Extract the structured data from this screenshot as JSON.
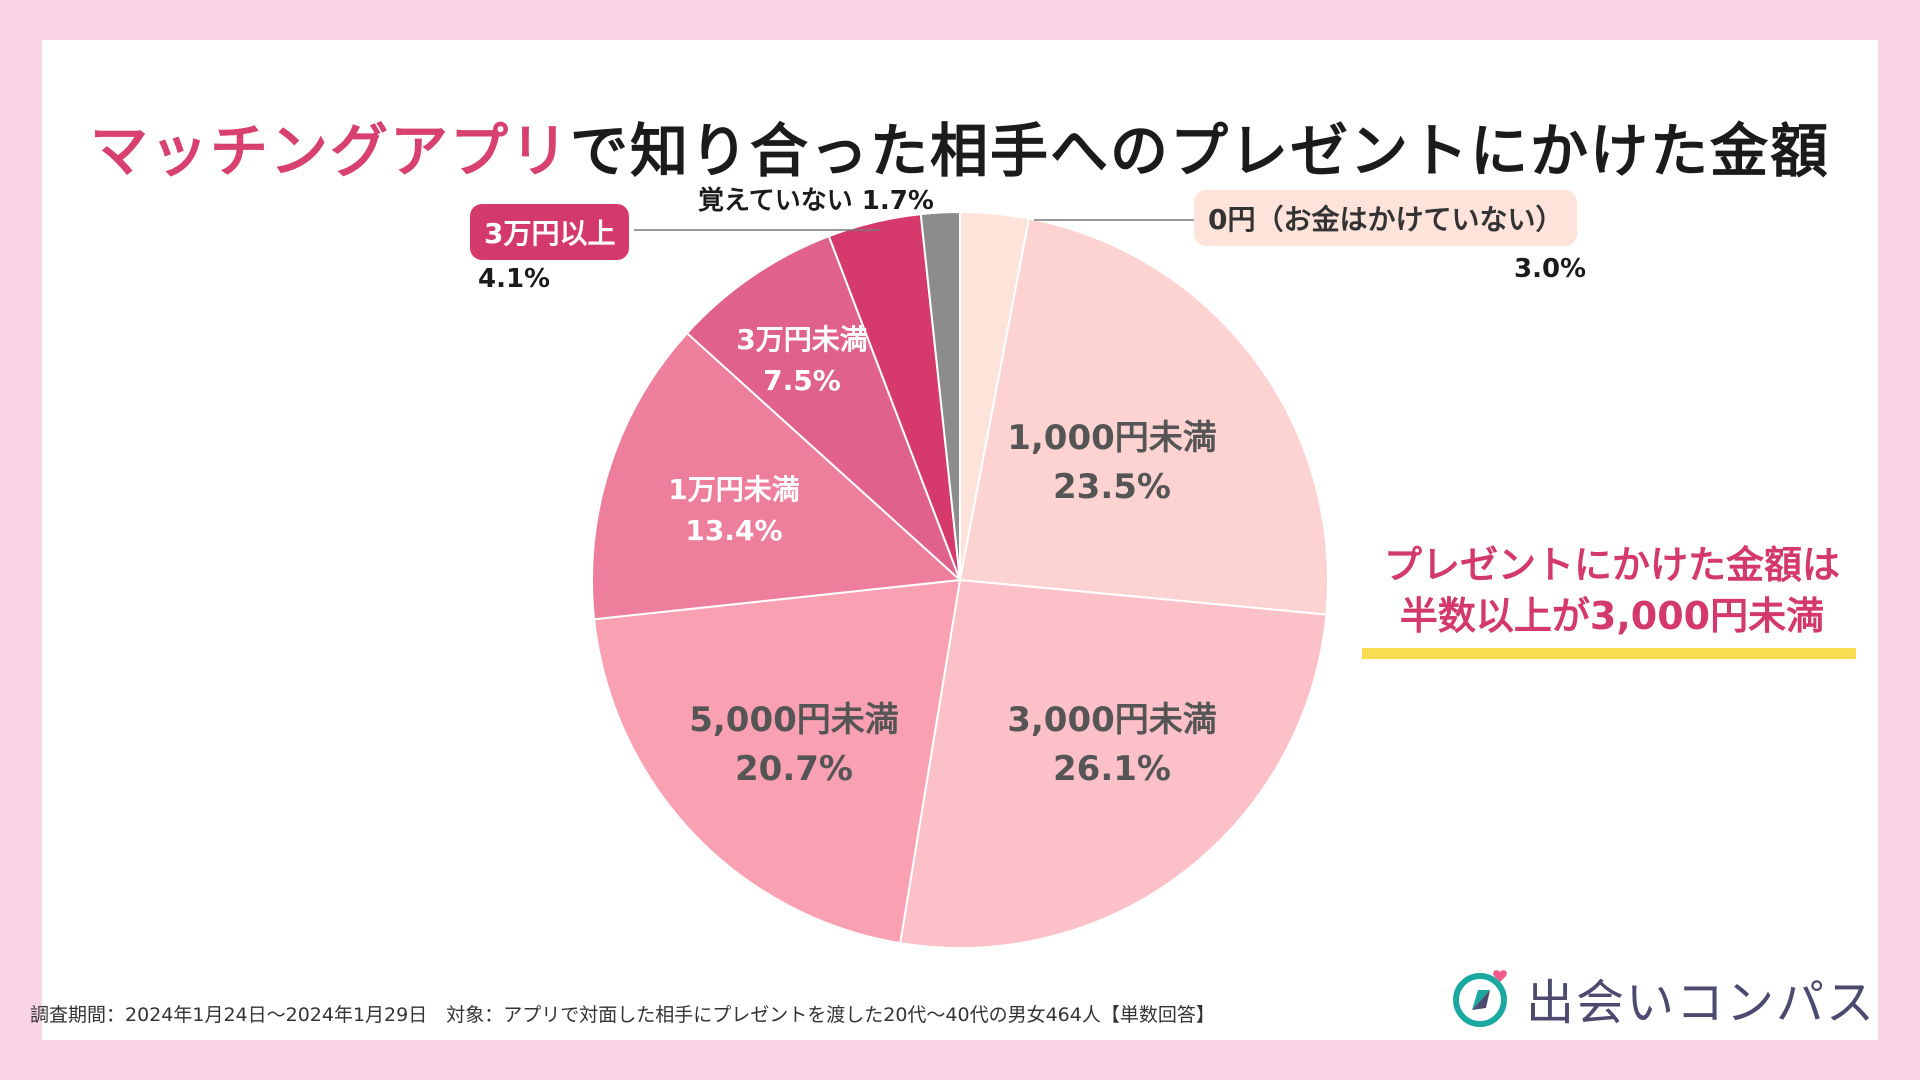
{
  "title": {
    "highlight": "マッチングアプリ",
    "rest": "で知り合った相手へのプレゼントにかけた金額"
  },
  "chart_data": {
    "type": "pie",
    "title": "マッチングアプリで知り合った相手へのプレゼントにかけた金額",
    "slices": [
      {
        "label": "0円（お金はかけていない）",
        "value": 3.0,
        "value_label": "3.0%",
        "color": "#fde3da"
      },
      {
        "label": "1,000円未満",
        "value": 23.5,
        "value_label": "23.5%",
        "color": "#fcd3d0"
      },
      {
        "label": "3,000円未満",
        "value": 26.1,
        "value_label": "26.1%",
        "color": "#fcc1c8"
      },
      {
        "label": "5,000円未満",
        "value": 20.7,
        "value_label": "20.7%",
        "color": "#f9a0b3"
      },
      {
        "label": "1万円未満",
        "value": 13.4,
        "value_label": "13.4%",
        "color": "#ee7f9c"
      },
      {
        "label": "3万円未満",
        "value": 7.5,
        "value_label": "7.5%",
        "color": "#e0628c"
      },
      {
        "label": "3万円以上",
        "value": 4.1,
        "value_label": "4.1%",
        "color": "#d63a6d"
      },
      {
        "label": "覚えていない",
        "value": 1.7,
        "value_label": "1.7%",
        "color": "#8c8c8c"
      }
    ]
  },
  "callout": {
    "line1": "プレゼントにかけた金額は",
    "line2": "半数以上が3,000円未満"
  },
  "footer": "調査期間：2024年1月24日〜2024年1月29日　対象：アプリで対面した相手にプレゼントを渡した20代〜40代の男女464人【単数回答】",
  "logo": {
    "text": "出会いコンパス",
    "icon": "compass-heart-icon"
  },
  "colors": {
    "accent": "#d33a6b",
    "highlight_bar": "#fadc53",
    "background": "#fbd3e6"
  }
}
